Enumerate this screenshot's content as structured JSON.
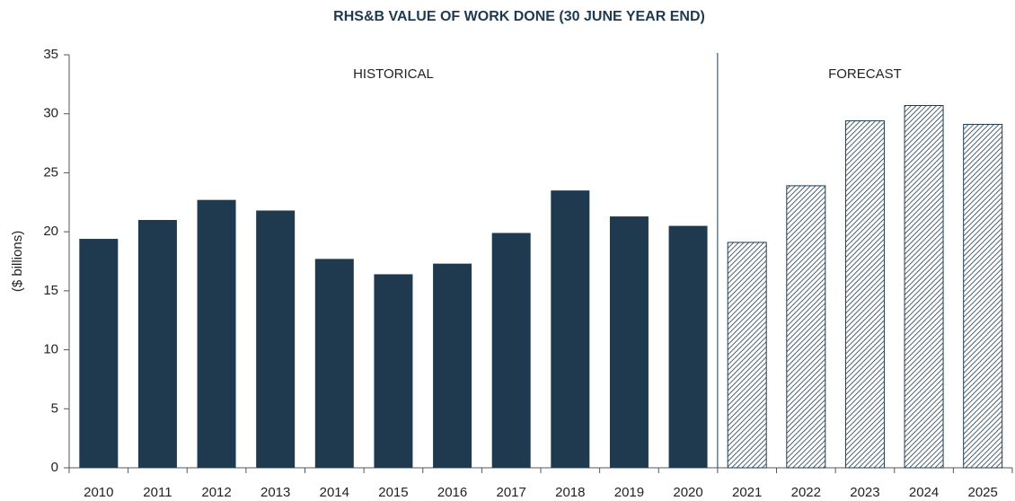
{
  "chart_data": {
    "type": "bar",
    "title": "RHS&B VALUE OF WORK DONE (30 JUNE YEAR END)",
    "y_label": "($ billions)",
    "categories": [
      "2010",
      "2011",
      "2012",
      "2013",
      "2014",
      "2015",
      "2016",
      "2017",
      "2018",
      "2019",
      "2020",
      "2021",
      "2022",
      "2023",
      "2024",
      "2025"
    ],
    "series": [
      {
        "name": "HISTORICAL",
        "color": "#1f3a4f",
        "values": [
          19.4,
          21.0,
          22.7,
          21.8,
          17.7,
          16.4,
          17.3,
          19.9,
          23.5,
          21.3,
          20.5,
          null,
          null,
          null,
          null,
          null
        ]
      },
      {
        "name": "FORECAST",
        "color": "#1f3a4f",
        "values": [
          null,
          null,
          null,
          null,
          null,
          null,
          null,
          null,
          null,
          null,
          null,
          19.1,
          23.9,
          29.4,
          30.7,
          29.1
        ]
      }
    ],
    "ylim": [
      0,
      35
    ],
    "yticks": [
      0,
      5,
      10,
      15,
      20,
      25,
      30,
      35
    ]
  }
}
